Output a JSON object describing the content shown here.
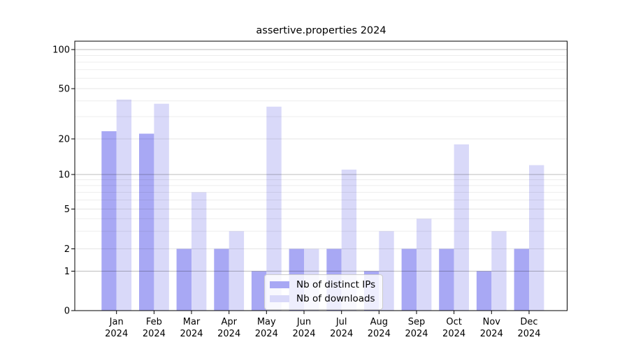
{
  "chart_data": {
    "type": "bar",
    "title": "assertive.properties 2024",
    "months": [
      "Jan",
      "Feb",
      "Mar",
      "Apr",
      "May",
      "Jun",
      "Jul",
      "Aug",
      "Sep",
      "Oct",
      "Nov",
      "Dec"
    ],
    "year_label": "2024",
    "series": [
      {
        "name": "Nb of distinct IPs",
        "color": "#a8a8f4",
        "values": [
          23,
          22,
          2,
          2,
          1,
          2,
          2,
          1,
          2,
          2,
          1,
          2
        ]
      },
      {
        "name": "Nb of downloads",
        "color": "#d9d9f9",
        "values": [
          41,
          38,
          7,
          3,
          36,
          2,
          11,
          3,
          4,
          18,
          3,
          12
        ]
      }
    ],
    "y_axis": {
      "scale": "log-like with 0 baseline",
      "ticks": [
        0,
        1,
        2,
        5,
        10,
        20,
        50,
        100
      ],
      "minor_gridlines": [
        3,
        4,
        6,
        7,
        8,
        9,
        30,
        40,
        60,
        70,
        80,
        90
      ]
    },
    "legend": {
      "labels": [
        "Nb of distinct IPs",
        "Nb of downloads"
      ],
      "position": "inside-lower-center"
    },
    "grid": "horizontal",
    "colors": {
      "spine": "#000000",
      "decade_gridline": "rgba(0,0,0,0.26)",
      "labeled_gridline": "rgba(0,0,0,0.10)",
      "minor_gridline": "rgba(0,0,0,0.07)"
    }
  }
}
